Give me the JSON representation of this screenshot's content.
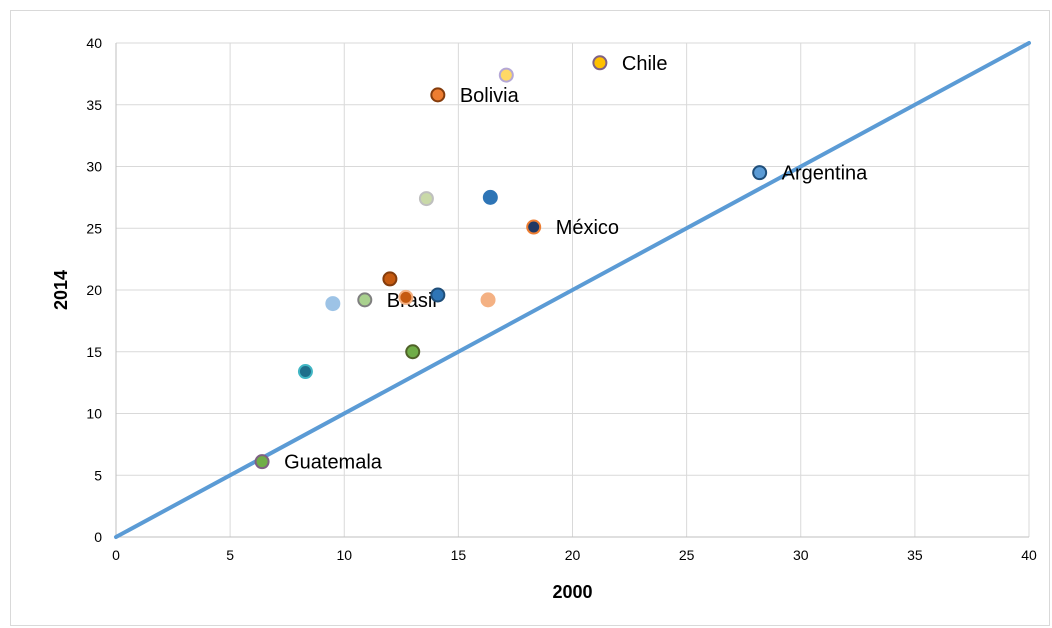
{
  "chart_data": {
    "type": "scatter",
    "xlabel": "2000",
    "ylabel": "2014",
    "xlim": [
      0,
      40
    ],
    "ylim": [
      0,
      40
    ],
    "xticks": [
      0,
      5,
      10,
      15,
      20,
      25,
      30,
      35,
      40
    ],
    "yticks": [
      0,
      5,
      10,
      15,
      20,
      25,
      30,
      35,
      40
    ],
    "grid": true,
    "reference_line": {
      "from": [
        0,
        0
      ],
      "to": [
        40,
        40
      ],
      "color": "#5b9bd5"
    },
    "points": [
      {
        "x": 6.4,
        "y": 6.1,
        "label": "Guatemala",
        "fill": "#70ad47",
        "stroke": "#7f6084"
      },
      {
        "x": 8.3,
        "y": 13.4,
        "label": "",
        "fill": "#1f6f8b",
        "stroke": "#41b6c4"
      },
      {
        "x": 9.5,
        "y": 18.9,
        "label": "",
        "fill": "#9dc3e6",
        "stroke": "#9dc3e6"
      },
      {
        "x": 10.9,
        "y": 19.2,
        "label": "Brasil",
        "fill": "#a9d18e",
        "stroke": "#7f7f7f"
      },
      {
        "x": 12.0,
        "y": 20.9,
        "label": "",
        "fill": "#c55a11",
        "stroke": "#843c0c"
      },
      {
        "x": 12.7,
        "y": 19.4,
        "label": "",
        "fill": "#c55a11",
        "stroke": "#f4b183"
      },
      {
        "x": 13.0,
        "y": 15.0,
        "label": "",
        "fill": "#70ad47",
        "stroke": "#4f6228"
      },
      {
        "x": 13.6,
        "y": 27.4,
        "label": "",
        "fill": "#c9d9a8",
        "stroke": "#bfbfbf"
      },
      {
        "x": 14.1,
        "y": 19.6,
        "label": "",
        "fill": "#2e75b6",
        "stroke": "#1f4e79"
      },
      {
        "x": 14.1,
        "y": 35.8,
        "label": "Bolivia",
        "fill": "#ed7d31",
        "stroke": "#843c0c"
      },
      {
        "x": 16.3,
        "y": 19.2,
        "label": "",
        "fill": "#f4b183",
        "stroke": "#f4b183"
      },
      {
        "x": 16.4,
        "y": 27.5,
        "label": "",
        "fill": "#2e75b6",
        "stroke": "#2e75b6"
      },
      {
        "x": 17.1,
        "y": 37.4,
        "label": "",
        "fill": "#ffd966",
        "stroke": "#b4a7d6"
      },
      {
        "x": 18.3,
        "y": 25.1,
        "label": "México",
        "fill": "#1f3864",
        "stroke": "#ed7d31"
      },
      {
        "x": 21.2,
        "y": 38.4,
        "label": "Chile",
        "fill": "#ffc000",
        "stroke": "#7f6084"
      },
      {
        "x": 28.2,
        "y": 29.5,
        "label": "Argentina",
        "fill": "#5b9bd5",
        "stroke": "#1f4e79"
      }
    ]
  }
}
